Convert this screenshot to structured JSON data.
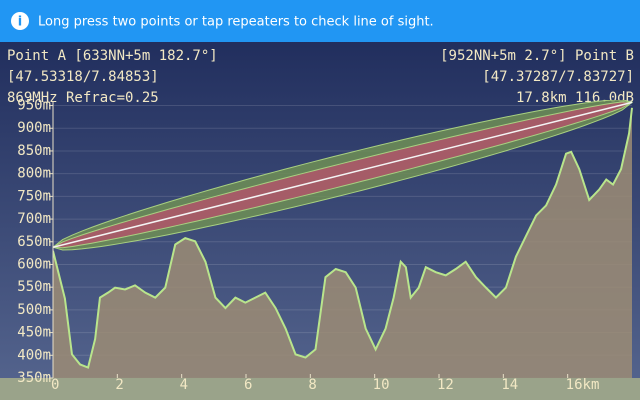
{
  "banner": "Long press two points or tap repeaters to check line of sight.",
  "header": {
    "left": [
      "Point A [633NN+5m 182.7°]",
      "[47.53318/7.84853]",
      "869MHz Refrac=0.25"
    ],
    "right": [
      "[952NN+5m 2.7°] Point B",
      "[47.37287/7.83727]",
      "17.8km 116.0dB"
    ]
  },
  "chart_data": {
    "type": "area",
    "x": [
      0,
      0.37,
      0.59,
      0.84,
      1.09,
      1.31,
      1.46,
      1.71,
      1.93,
      2.24,
      2.55,
      2.87,
      3.18,
      3.49,
      3.8,
      4.11,
      4.42,
      4.74,
      5.05,
      5.36,
      5.67,
      5.98,
      6.29,
      6.6,
      6.92,
      7.23,
      7.54,
      7.85,
      8.16,
      8.47,
      8.79,
      9.1,
      9.41,
      9.72,
      10.03,
      10.34,
      10.59,
      10.81,
      10.97,
      11.12,
      11.37,
      11.59,
      11.9,
      12.21,
      12.52,
      12.83,
      13.15,
      13.46,
      13.77,
      14.08,
      14.39,
      14.7,
      15.02,
      15.33,
      15.64,
      15.95,
      16.11,
      16.36,
      16.67,
      16.98,
      17.2,
      17.41,
      17.66,
      17.91,
      18
    ],
    "values": [
      630,
      525,
      402,
      380,
      373,
      436,
      527,
      538,
      549,
      545,
      554,
      538,
      527,
      549,
      644,
      658,
      651,
      606,
      527,
      504,
      527,
      516,
      527,
      538,
      504,
      459,
      402,
      395,
      413,
      572,
      590,
      583,
      549,
      459,
      413,
      459,
      527,
      606,
      594,
      527,
      549,
      594,
      583,
      576,
      590,
      606,
      572,
      549,
      527,
      549,
      617,
      662,
      708,
      730,
      776,
      844,
      848,
      810,
      742,
      765,
      787,
      776,
      810,
      889,
      945
    ],
    "color": "#9c8c74",
    "stroke": "#b9e58c",
    "sight_line": {
      "x": [
        0,
        18
      ],
      "values": [
        638,
        957
      ],
      "color": "#f4f4f4"
    },
    "fresnel_radii": [
      25,
      45
    ],
    "fresnel_colors": [
      "#b0556a",
      "#6f8f55"
    ],
    "xlim": [
      0,
      18
    ],
    "ylim": [
      350,
      960
    ],
    "xticks": [
      0,
      2,
      4,
      6,
      8,
      10,
      12,
      14,
      {
        "value": 16,
        "label": "16km"
      }
    ],
    "yticks": [
      {
        "value": 350,
        "label": "350m"
      },
      {
        "value": 400,
        "label": "400m"
      },
      {
        "value": 450,
        "label": "450m"
      },
      {
        "value": 500,
        "label": "500m"
      },
      {
        "value": 550,
        "label": "550m"
      },
      {
        "value": 600,
        "label": "600m"
      },
      {
        "value": 650,
        "label": "650m"
      },
      {
        "value": 700,
        "label": "700m"
      },
      {
        "value": 750,
        "label": "750m"
      },
      {
        "value": 800,
        "label": "800m"
      },
      {
        "value": 850,
        "label": "850m"
      },
      {
        "value": 900,
        "label": "900m"
      },
      {
        "value": 950,
        "label": "950m"
      }
    ],
    "grid": true
  }
}
